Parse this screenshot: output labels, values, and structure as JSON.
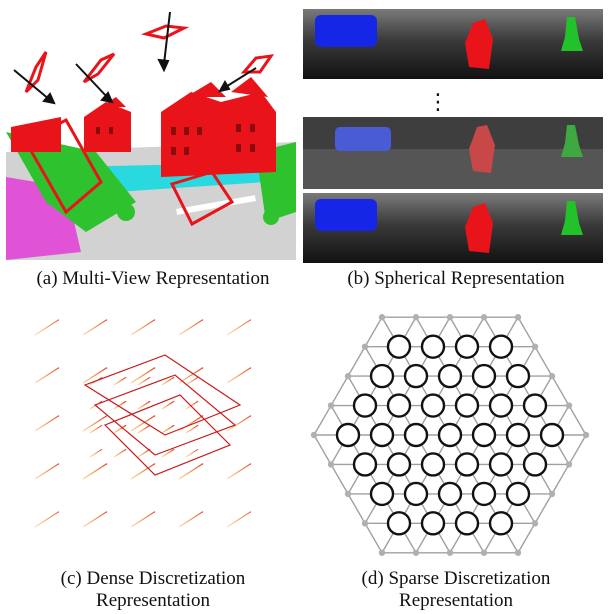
{
  "panels": {
    "a": {
      "caption": "(a) Multi-View Representation"
    },
    "b": {
      "caption": "(b) Spherical Representation",
      "ellipsis": "⋮"
    },
    "c": {
      "caption_line1": "(c) Dense Discretization",
      "caption_line2": "Representation"
    },
    "d": {
      "caption_line1": "(d) Sparse Discretization",
      "caption_line2": "Representation"
    }
  },
  "colors": {
    "building": "#e8141a",
    "vehicle": "#1626e6",
    "pedestrian": "#e8141a",
    "cyclist": "#22c22a",
    "vegetation": "#2fc72f",
    "road": "#c9c9c9",
    "sidewalk": "#29d9e0",
    "terrain": "#e055d8",
    "lattice": "#9b9b9b",
    "node": "#111111"
  }
}
